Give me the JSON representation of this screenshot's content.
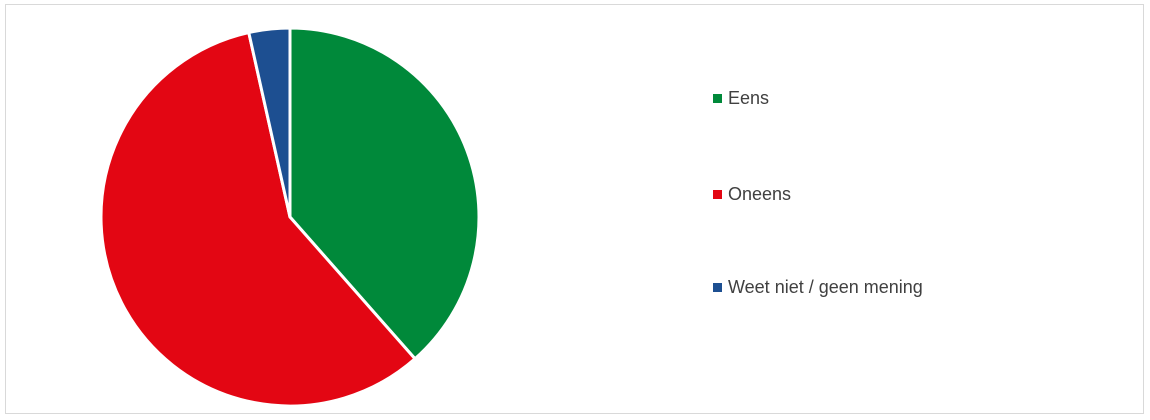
{
  "chart_data": {
    "type": "pie",
    "title": "",
    "slices": [
      {
        "label": "Eens",
        "value": 38.5,
        "color": "#00893a"
      },
      {
        "label": "Oneens",
        "value": 58.0,
        "color": "#e30613"
      },
      {
        "label": "Weet niet / geen mening",
        "value": 3.5,
        "color": "#1d4f91"
      }
    ],
    "start_angle": "12 o'clock",
    "direction": "clockwise",
    "legend_position": "right"
  }
}
